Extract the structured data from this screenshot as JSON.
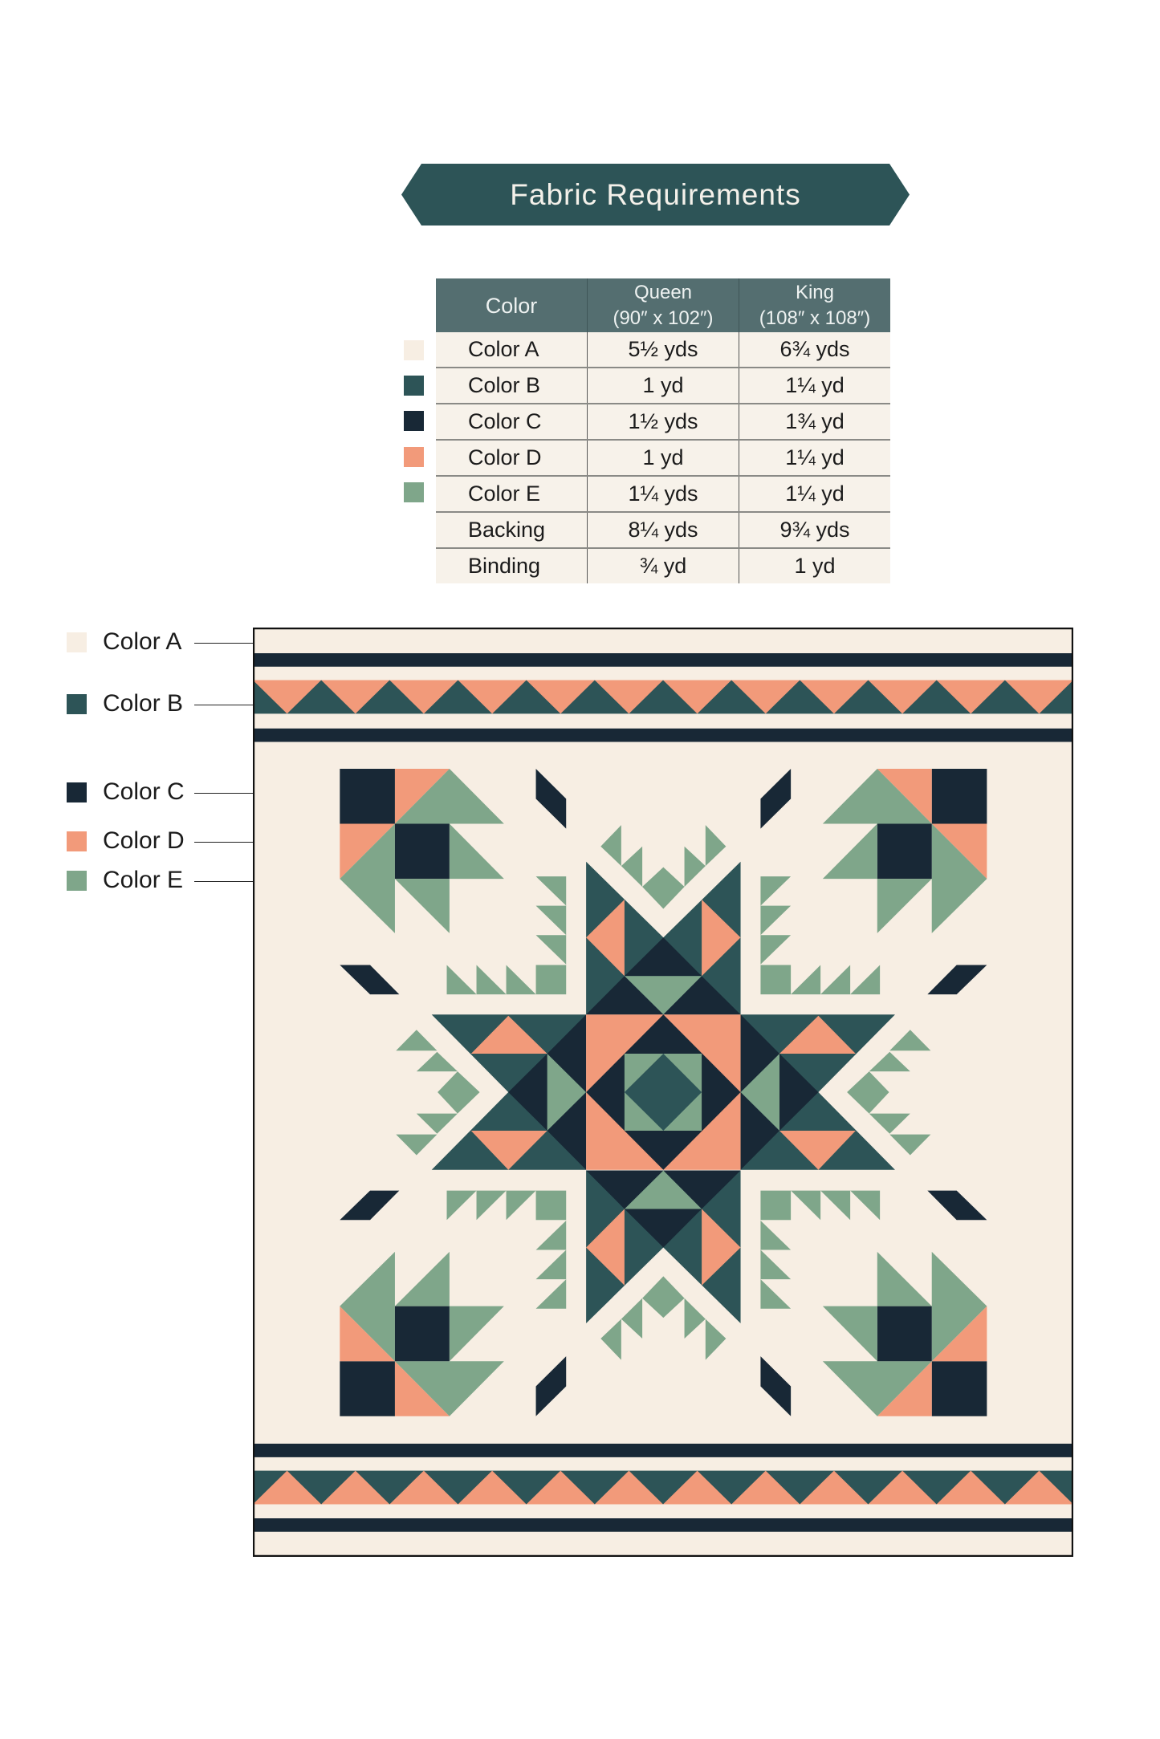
{
  "title": "Fabric Requirements",
  "colors": {
    "A": "#f7eee3",
    "B": "#2d5457",
    "C": "#182836",
    "D": "#f29a7a",
    "E": "#7fa68a",
    "banner": "#2d5457",
    "table_header": "#546e70"
  },
  "table": {
    "headers": {
      "color": "Color",
      "queen": "Queen",
      "queen_size": "(90″ x 102″)",
      "king": "King",
      "king_size": "(108″ x 108″)"
    },
    "rows": [
      {
        "name": "Color A",
        "queen": "5½ yds",
        "king": "6¾ yds",
        "swatch": "#f7eee3"
      },
      {
        "name": "Color B",
        "queen": "1 yd",
        "king": "1¼ yd",
        "swatch": "#2d5457"
      },
      {
        "name": "Color C",
        "queen": "1½ yds",
        "king": "1¾ yd",
        "swatch": "#182836"
      },
      {
        "name": "Color D",
        "queen": "1 yd",
        "king": "1¼ yd",
        "swatch": "#f29a7a"
      },
      {
        "name": "Color E",
        "queen": "1¼ yds",
        "king": "1¼ yd",
        "swatch": "#7fa68a"
      },
      {
        "name": "Backing",
        "queen": "8¼ yds",
        "king": "9¾ yds"
      },
      {
        "name": "Binding",
        "queen": "¾ yd",
        "king": "1 yd"
      }
    ]
  },
  "legend": [
    {
      "label": "Color A",
      "swatch": "#f7eee3"
    },
    {
      "label": "Color B",
      "swatch": "#2d5457"
    },
    {
      "label": "Color C",
      "swatch": "#182836"
    },
    {
      "label": "Color D",
      "swatch": "#f29a7a"
    },
    {
      "label": "Color E",
      "swatch": "#7fa68a"
    }
  ]
}
